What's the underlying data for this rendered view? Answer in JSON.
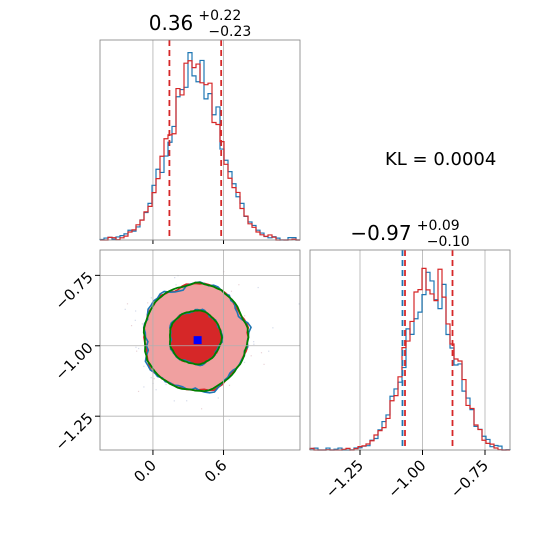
{
  "annotation": "KL = 0.0004",
  "colors": {
    "blue": "#1f77b4",
    "red": "#d62728",
    "green": "#008000",
    "red_light": "#f0a0a0",
    "truth_marker": "#0000ff",
    "grid": "#b0b0b0",
    "frame": "#808080"
  },
  "chart_data": [
    {
      "id": "hist-param1",
      "type": "histogram",
      "title": "0.36",
      "title_sup": "+0.22",
      "title_sub": "−0.23",
      "xlim": [
        -0.45,
        1.25
      ],
      "ylim": [
        0,
        1.15
      ],
      "grid": true,
      "center": 0.36,
      "sigma": 0.22,
      "bins": 50,
      "series": [
        {
          "color": "blue",
          "seed": 3
        },
        {
          "color": "red",
          "seed": 11
        }
      ],
      "quantile_lines": [
        {
          "x": 0.14,
          "color": "red"
        },
        {
          "x": 0.58,
          "color": "red"
        }
      ]
    },
    {
      "id": "hist-param2",
      "type": "histogram",
      "title": "−0.97",
      "title_sup": "+0.09",
      "title_sub": "−0.10",
      "xlim": [
        -1.45,
        -0.65
      ],
      "ylim": [
        0,
        1.15
      ],
      "grid": true,
      "center": -0.97,
      "sigma": 0.095,
      "bins": 50,
      "xticks": [
        -1.25,
        -1.0,
        -0.75
      ],
      "xtick_labels": [
        "−1.25",
        "−1.00",
        "−0.75"
      ],
      "series": [
        {
          "color": "blue",
          "seed": 5
        },
        {
          "color": "red",
          "seed": 17
        }
      ],
      "quantile_lines": [
        {
          "x": -1.08,
          "color": "blue"
        },
        {
          "x": -1.07,
          "color": "red"
        },
        {
          "x": -0.88,
          "color": "red"
        }
      ]
    },
    {
      "id": "joint-param1-param2",
      "type": "scatter",
      "xlim": [
        -0.45,
        1.25
      ],
      "ylim": [
        -1.37,
        -0.66
      ],
      "xticks": [
        0.0,
        0.6
      ],
      "xtick_labels": [
        "0.0",
        "0.6"
      ],
      "yticks": [
        -0.75,
        -1.0,
        -1.25
      ],
      "ytick_labels": [
        "−0.75",
        "−1.00",
        "−1.25"
      ],
      "grid": true,
      "center": [
        0.36,
        -0.97
      ],
      "sigma": [
        0.22,
        0.095
      ],
      "truth_point": {
        "x": 0.38,
        "y": -0.98
      },
      "contours": [
        {
          "color": "red",
          "filled": true,
          "levels": [
            1.0,
            2.0
          ]
        },
        {
          "color": "blue",
          "filled": false,
          "levels": [
            1.0,
            2.0
          ]
        },
        {
          "color": "green",
          "filled": false,
          "levels": [
            1.0,
            2.0
          ]
        }
      ]
    }
  ]
}
